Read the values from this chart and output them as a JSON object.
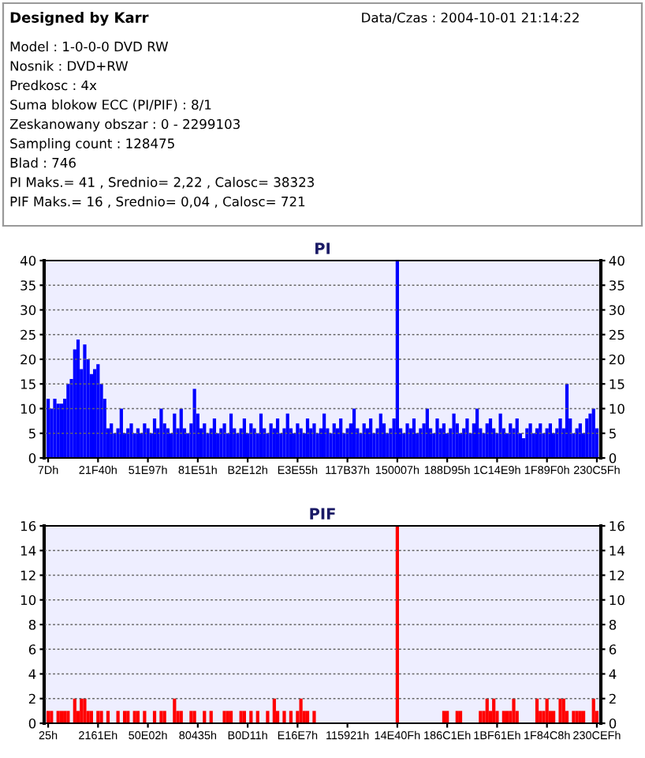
{
  "chart_data": [
    {
      "type": "other",
      "title": "Designed by Karr",
      "annotations": [
        "Data/Czas : 2004-10-01 21:14:22",
        "Model : 1-0-0-0 DVD RW",
        "Nosnik : DVD+RW",
        "Predkosc : 4x",
        "Suma blokow ECC (PI/PIF) : 8/1",
        "Zeskanowany obszar : 0 - 2299103",
        "Sampling count : 128475",
        "Blad : 746",
        "PI Maks.= 41 , Srednio= 2,22 , Calosc= 38323",
        "PIF Maks.= 16 , Srednio= 0,04 , Calosc= 721"
      ]
    },
    {
      "type": "bar",
      "title": "PI",
      "color": "#0000ff",
      "ylim": [
        0,
        40
      ],
      "yticks": [
        0,
        5,
        10,
        15,
        20,
        25,
        30,
        35,
        40
      ],
      "y2lim": [
        0,
        40
      ],
      "y2ticks": [
        0,
        5,
        10,
        15,
        20,
        25,
        30,
        35,
        40
      ],
      "grid": "y",
      "categories": [
        "7Dh",
        null,
        null,
        null,
        null,
        null,
        null,
        null,
        null,
        null,
        null,
        null,
        null,
        null,
        null,
        "21F40h",
        null,
        null,
        null,
        null,
        null,
        null,
        null,
        null,
        null,
        null,
        null,
        null,
        null,
        null,
        "51E97h",
        null,
        null,
        null,
        null,
        null,
        null,
        null,
        null,
        null,
        null,
        null,
        null,
        null,
        null,
        "81E51h",
        null,
        null,
        null,
        null,
        null,
        null,
        null,
        null,
        null,
        null,
        null,
        null,
        null,
        null,
        "B2E12h",
        null,
        null,
        null,
        null,
        null,
        null,
        null,
        null,
        null,
        null,
        null,
        null,
        null,
        null,
        "E3E55h",
        null,
        null,
        null,
        null,
        null,
        null,
        null,
        null,
        null,
        null,
        null,
        null,
        null,
        null,
        "117B37h",
        null,
        null,
        null,
        null,
        null,
        null,
        null,
        null,
        null,
        null,
        null,
        null,
        null,
        null,
        "150007h",
        null,
        null,
        null,
        null,
        null,
        null,
        null,
        null,
        null,
        null,
        null,
        null,
        null,
        null,
        "188D95h",
        null,
        null,
        null,
        null,
        null,
        null,
        null,
        null,
        null,
        null,
        null,
        null,
        null,
        null,
        "1C14E9h",
        null,
        null,
        null,
        null,
        null,
        null,
        null,
        null,
        null,
        null,
        null,
        null,
        null,
        null,
        "1F89F0h",
        null,
        null,
        null,
        null,
        null,
        null,
        null,
        null,
        null,
        null,
        null,
        null,
        null,
        null,
        "230C5Fh"
      ],
      "values": [
        12,
        10,
        12,
        11,
        11,
        12,
        15,
        16,
        22,
        24,
        18,
        23,
        20,
        17,
        18,
        19,
        15,
        12,
        6,
        7,
        5,
        6,
        10,
        5,
        6,
        7,
        5,
        6,
        5,
        7,
        6,
        5,
        8,
        6,
        10,
        7,
        6,
        5,
        9,
        6,
        10,
        6,
        5,
        7,
        14,
        9,
        6,
        7,
        5,
        6,
        8,
        5,
        6,
        7,
        5,
        9,
        6,
        5,
        6,
        8,
        5,
        7,
        6,
        5,
        9,
        6,
        5,
        7,
        6,
        8,
        5,
        6,
        9,
        6,
        5,
        7,
        6,
        5,
        8,
        6,
        7,
        5,
        6,
        9,
        6,
        5,
        7,
        6,
        8,
        5,
        6,
        7,
        10,
        6,
        5,
        7,
        6,
        8,
        5,
        6,
        9,
        7,
        5,
        6,
        8,
        40,
        6,
        5,
        7,
        6,
        8,
        5,
        6,
        7,
        10,
        6,
        5,
        8,
        6,
        7,
        5,
        6,
        9,
        7,
        5,
        6,
        8,
        5,
        7,
        10,
        6,
        5,
        7,
        8,
        6,
        5,
        9,
        6,
        5,
        7,
        6,
        8,
        5,
        4,
        6,
        7,
        5,
        6,
        7,
        5,
        6,
        7,
        5,
        6,
        8,
        6,
        15,
        8,
        5,
        6,
        7,
        5,
        8,
        9,
        10,
        6
      ]
    },
    {
      "type": "bar",
      "title": "PIF",
      "color": "#ff0000",
      "ylim": [
        0,
        16
      ],
      "yticks": [
        0,
        2,
        4,
        6,
        8,
        10,
        12,
        14,
        16
      ],
      "y2lim": [
        0,
        16
      ],
      "y2ticks": [
        0,
        2,
        4,
        6,
        8,
        10,
        12,
        14,
        16
      ],
      "grid": "y",
      "categories": [
        "25h",
        null,
        null,
        null,
        null,
        null,
        null,
        null,
        null,
        null,
        null,
        null,
        null,
        null,
        null,
        "2161Eh",
        null,
        null,
        null,
        null,
        null,
        null,
        null,
        null,
        null,
        null,
        null,
        null,
        null,
        null,
        "50E02h",
        null,
        null,
        null,
        null,
        null,
        null,
        null,
        null,
        null,
        null,
        null,
        null,
        null,
        null,
        "80435h",
        null,
        null,
        null,
        null,
        null,
        null,
        null,
        null,
        null,
        null,
        null,
        null,
        null,
        null,
        "B0D11h",
        null,
        null,
        null,
        null,
        null,
        null,
        null,
        null,
        null,
        null,
        null,
        null,
        null,
        null,
        "E16E7h",
        null,
        null,
        null,
        null,
        null,
        null,
        null,
        null,
        null,
        null,
        null,
        null,
        null,
        null,
        "115921h",
        null,
        null,
        null,
        null,
        null,
        null,
        null,
        null,
        null,
        null,
        null,
        null,
        null,
        null,
        "14E40Fh",
        null,
        null,
        null,
        null,
        null,
        null,
        null,
        null,
        null,
        null,
        null,
        null,
        null,
        null,
        "186C1Eh",
        null,
        null,
        null,
        null,
        null,
        null,
        null,
        null,
        null,
        null,
        null,
        null,
        null,
        null,
        "1BF61Eh",
        null,
        null,
        null,
        null,
        null,
        null,
        null,
        null,
        null,
        null,
        null,
        null,
        null,
        null,
        "1F84C8h",
        null,
        null,
        null,
        null,
        null,
        null,
        null,
        null,
        null,
        null,
        null,
        null,
        null,
        null,
        "230CEFh"
      ],
      "values": [
        1,
        1,
        0,
        1,
        1,
        1,
        1,
        0,
        2,
        1,
        2,
        2,
        1,
        1,
        0,
        1,
        1,
        0,
        1,
        0,
        0,
        1,
        0,
        1,
        1,
        0,
        1,
        1,
        0,
        1,
        0,
        0,
        1,
        0,
        1,
        1,
        0,
        0,
        2,
        1,
        1,
        0,
        0,
        1,
        1,
        0,
        0,
        1,
        0,
        1,
        0,
        0,
        0,
        1,
        1,
        1,
        0,
        0,
        1,
        1,
        0,
        1,
        0,
        1,
        0,
        0,
        1,
        0,
        2,
        1,
        0,
        1,
        0,
        1,
        0,
        1,
        2,
        1,
        1,
        0,
        1,
        0,
        0,
        0,
        0,
        0,
        0,
        0,
        0,
        0,
        0,
        0,
        0,
        0,
        0,
        0,
        0,
        0,
        0,
        0,
        0,
        0,
        0,
        0,
        0,
        16,
        0,
        0,
        0,
        0,
        0,
        0,
        0,
        0,
        0,
        0,
        0,
        0,
        0,
        1,
        1,
        0,
        0,
        1,
        1,
        0,
        0,
        0,
        0,
        0,
        1,
        1,
        2,
        1,
        2,
        1,
        0,
        1,
        1,
        1,
        2,
        1,
        0,
        0,
        0,
        0,
        0,
        2,
        1,
        1,
        2,
        1,
        1,
        0,
        2,
        2,
        1,
        0,
        1,
        1,
        1,
        1,
        0,
        0,
        2,
        1
      ]
    }
  ]
}
